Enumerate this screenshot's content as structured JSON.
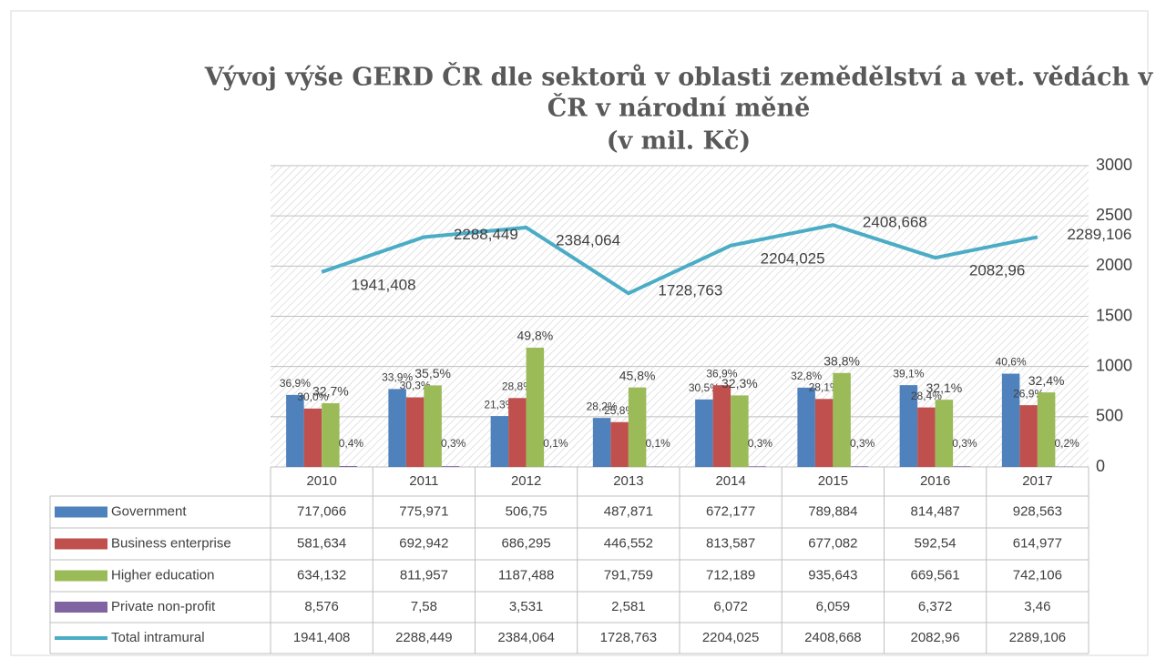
{
  "chart_data": {
    "type": "bar",
    "title_lines": [
      "Vývoj výše GERD ČR dle sektorů v oblasti zemědělství a vet. vědách v",
      "ČR v národní měně",
      "(v mil. Kč)"
    ],
    "categories": [
      "2010",
      "2011",
      "2012",
      "2013",
      "2014",
      "2015",
      "2016",
      "2017"
    ],
    "series": [
      {
        "name": "Government",
        "color": "#4f81bd",
        "type": "bar",
        "values": [
          717.066,
          775.971,
          506.75,
          487.871,
          672.177,
          789.884,
          814.487,
          928.563
        ],
        "value_labels": [
          "717,066",
          "775,971",
          "506,75",
          "487,871",
          "672,177",
          "789,884",
          "814,487",
          "928,563"
        ],
        "share_labels": [
          "36,9%",
          "33,9%",
          "21,3%",
          "28,2%",
          "30,5%",
          "32,8%",
          "39,1%",
          "40,6%"
        ]
      },
      {
        "name": "Business enterprise",
        "color": "#c0504d",
        "type": "bar",
        "values": [
          581.634,
          692.942,
          686.295,
          446.552,
          813.587,
          677.082,
          592.54,
          614.977
        ],
        "value_labels": [
          "581,634",
          "692,942",
          "686,295",
          "446,552",
          "813,587",
          "677,082",
          "592,54",
          "614,977"
        ],
        "share_labels": [
          "30,0%",
          "30,3%",
          "28,8%",
          "25,8%",
          "36,9%",
          "28,1%",
          "28,4%",
          "26,9%"
        ]
      },
      {
        "name": "Higher education",
        "color": "#9bbb59",
        "type": "bar",
        "values": [
          634.132,
          811.957,
          1187.488,
          791.759,
          712.189,
          935.643,
          669.561,
          742.106
        ],
        "value_labels": [
          "634,132",
          "811,957",
          "1187,488",
          "791,759",
          "712,189",
          "935,643",
          "669,561",
          "742,106"
        ],
        "share_labels": [
          "32,7%",
          "35,5%",
          "49,8%",
          "45,8%",
          "32,3%",
          "38,8%",
          "32,1%",
          "32,4%"
        ]
      },
      {
        "name": "Private non-profit",
        "color": "#8064a2",
        "type": "bar",
        "values": [
          8.576,
          7.58,
          3.531,
          2.581,
          6.072,
          6.059,
          6.372,
          3.46
        ],
        "value_labels": [
          "8,576",
          "7,58",
          "3,531",
          "2,581",
          "6,072",
          "6,059",
          "6,372",
          "3,46"
        ],
        "share_labels": [
          "0,4%",
          "0,3%",
          "0,1%",
          "0,1%",
          "0,3%",
          "0,3%",
          "0,3%",
          "0,2%"
        ]
      },
      {
        "name": "Total intramural",
        "color": "#4bacc6",
        "type": "line",
        "values": [
          1941.408,
          2288.449,
          2384.064,
          1728.763,
          2204.025,
          2408.668,
          2082.96,
          2289.106
        ],
        "value_labels": [
          "1941,408",
          "2288,449",
          "2384,064",
          "1728,763",
          "2204,025",
          "2408,668",
          "2082,96",
          "2289,106"
        ]
      }
    ],
    "ylim": [
      0,
      3000
    ],
    "yticks": [
      0,
      500,
      1000,
      1500,
      2000,
      2500,
      3000
    ],
    "grid": true
  }
}
